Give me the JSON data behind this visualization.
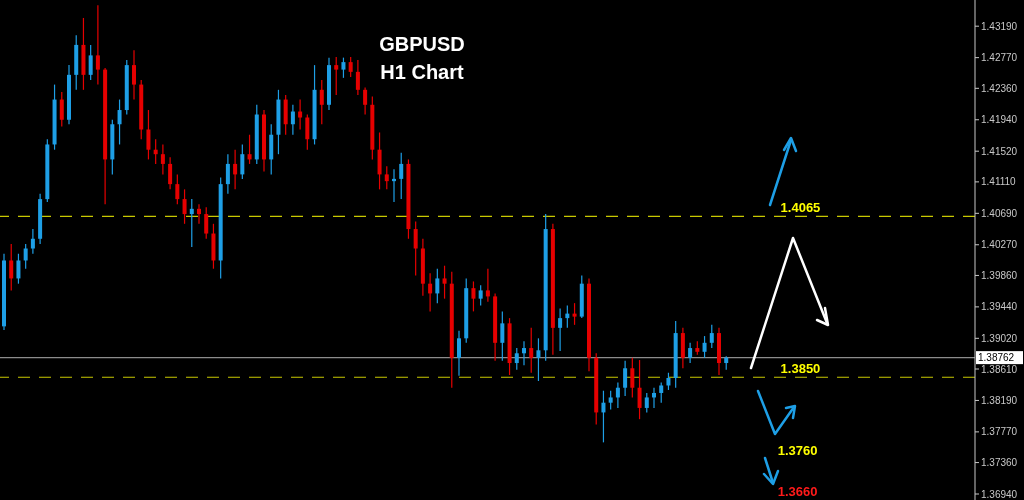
{
  "chart_data": {
    "type": "candlestick",
    "title": "GBPUSD",
    "subtitle": "H1 Chart",
    "categories": [
      null,
      null,
      null,
      null,
      null,
      null,
      null,
      null,
      null,
      null,
      null,
      null,
      null,
      null,
      null,
      null,
      null,
      null,
      null,
      null,
      null,
      null,
      null,
      null,
      null,
      null,
      null,
      null,
      null,
      null,
      null,
      null,
      null,
      null,
      null,
      null,
      null,
      null,
      null,
      null,
      null,
      null,
      null,
      null,
      null,
      null,
      null,
      null,
      null,
      null,
      null,
      null,
      null,
      null,
      null,
      null,
      null,
      null,
      null,
      null,
      null,
      null,
      null,
      null,
      null,
      null,
      null,
      null,
      null,
      null,
      null,
      null,
      null,
      null,
      null,
      null,
      null,
      null,
      null,
      null,
      null,
      null,
      null,
      null,
      null,
      null,
      null,
      null,
      null,
      null,
      null,
      null,
      null,
      null,
      null,
      null,
      null,
      null,
      null,
      null,
      null,
      null,
      null,
      null,
      null,
      null,
      null,
      null,
      null,
      null,
      null,
      null,
      null,
      null,
      null,
      null,
      null,
      null,
      null,
      null,
      null,
      null,
      null,
      null,
      null,
      null,
      null,
      null,
      null,
      null,
      null,
      null,
      null,
      null,
      null
    ],
    "ohlc": [
      [
        1.3918,
        1.4015,
        1.3913,
        1.4006
      ],
      [
        1.4006,
        1.4028,
        1.3966,
        1.3982
      ],
      [
        1.3982,
        1.4015,
        1.3975,
        1.4006
      ],
      [
        1.4006,
        1.4028,
        1.3995,
        1.4022
      ],
      [
        1.4022,
        1.4048,
        1.4015,
        1.4035
      ],
      [
        1.4035,
        1.4095,
        1.4028,
        1.4088
      ],
      [
        1.4088,
        1.4168,
        1.4084,
        1.4161
      ],
      [
        1.4161,
        1.4241,
        1.4154,
        1.4221
      ],
      [
        1.4221,
        1.4231,
        1.4185,
        1.4194
      ],
      [
        1.4194,
        1.4267,
        1.4188,
        1.4254
      ],
      [
        1.4254,
        1.4307,
        1.4234,
        1.4294
      ],
      [
        1.4294,
        1.433,
        1.4234,
        1.4254
      ],
      [
        1.4254,
        1.4294,
        1.4247,
        1.428
      ],
      [
        1.428,
        1.4347,
        1.4241,
        1.4261
      ],
      [
        1.4261,
        1.4263,
        1.4081,
        1.4141
      ],
      [
        1.4141,
        1.4194,
        1.4121,
        1.4188
      ],
      [
        1.4188,
        1.4221,
        1.4161,
        1.4207
      ],
      [
        1.4207,
        1.4274,
        1.4201,
        1.4267
      ],
      [
        1.4267,
        1.4287,
        1.4221,
        1.4241
      ],
      [
        1.4241,
        1.4247,
        1.4168,
        1.4181
      ],
      [
        1.4181,
        1.4207,
        1.4141,
        1.4154
      ],
      [
        1.4154,
        1.4168,
        1.4135,
        1.4148
      ],
      [
        1.4148,
        1.4161,
        1.4121,
        1.4135
      ],
      [
        1.4135,
        1.4144,
        1.4101,
        1.4108
      ],
      [
        1.4108,
        1.4121,
        1.4081,
        1.4088
      ],
      [
        1.4088,
        1.4101,
        1.4055,
        1.4068
      ],
      [
        1.4068,
        1.4088,
        1.4024,
        1.4075
      ],
      [
        1.4075,
        1.4081,
        1.4055,
        1.4068
      ],
      [
        1.4068,
        1.4077,
        1.4035,
        1.4042
      ],
      [
        1.4042,
        1.4055,
        1.3995,
        1.4006
      ],
      [
        1.4006,
        1.4117,
        1.3982,
        1.4108
      ],
      [
        1.4108,
        1.4148,
        1.4095,
        1.4135
      ],
      [
        1.4135,
        1.4154,
        1.4101,
        1.4121
      ],
      [
        1.4121,
        1.4161,
        1.4115,
        1.4148
      ],
      [
        1.4148,
        1.4174,
        1.4135,
        1.4141
      ],
      [
        1.4141,
        1.4214,
        1.4135,
        1.4201
      ],
      [
        1.4201,
        1.4207,
        1.4125,
        1.4141
      ],
      [
        1.4141,
        1.4188,
        1.4121,
        1.4174
      ],
      [
        1.4174,
        1.4234,
        1.4148,
        1.4221
      ],
      [
        1.4221,
        1.4227,
        1.4174,
        1.4188
      ],
      [
        1.4188,
        1.4214,
        1.4174,
        1.4205
      ],
      [
        1.4205,
        1.4221,
        1.4181,
        1.4197
      ],
      [
        1.4197,
        1.4201,
        1.4154,
        1.4168
      ],
      [
        1.4168,
        1.4267,
        1.4161,
        1.4234
      ],
      [
        1.4234,
        1.4247,
        1.4188,
        1.4214
      ],
      [
        1.4214,
        1.4277,
        1.4207,
        1.4267
      ],
      [
        1.4267,
        1.4278,
        1.4227,
        1.4261
      ],
      [
        1.4261,
        1.4277,
        1.425,
        1.4271
      ],
      [
        1.4271,
        1.4278,
        1.4251,
        1.4258
      ],
      [
        1.4258,
        1.4274,
        1.4227,
        1.4234
      ],
      [
        1.4234,
        1.4237,
        1.4201,
        1.4214
      ],
      [
        1.4214,
        1.4225,
        1.4141,
        1.4154
      ],
      [
        1.4154,
        1.4177,
        1.4101,
        1.4121
      ],
      [
        1.4121,
        1.4132,
        1.4101,
        1.4112
      ],
      [
        1.4112,
        1.4128,
        1.4084,
        1.4115
      ],
      [
        1.4115,
        1.415,
        1.4088,
        1.4135
      ],
      [
        1.4135,
        1.4141,
        1.4035,
        1.4048
      ],
      [
        1.4048,
        1.4058,
        1.3986,
        1.4022
      ],
      [
        1.4022,
        1.4035,
        1.3959,
        1.3975
      ],
      [
        1.3975,
        1.3989,
        1.3938,
        1.3962
      ],
      [
        1.3962,
        1.3995,
        1.3949,
        1.3982
      ],
      [
        1.3982,
        1.3999,
        1.3955,
        1.3975
      ],
      [
        1.3975,
        1.3991,
        1.3836,
        1.3876
      ],
      [
        1.3876,
        1.3912,
        1.3852,
        1.3902
      ],
      [
        1.3902,
        1.3982,
        1.3896,
        1.3969
      ],
      [
        1.3969,
        1.3978,
        1.3938,
        1.3955
      ],
      [
        1.3955,
        1.3973,
        1.3946,
        1.3966
      ],
      [
        1.3966,
        1.3995,
        1.3951,
        1.3958
      ],
      [
        1.3958,
        1.3962,
        1.3872,
        1.3896
      ],
      [
        1.3896,
        1.3938,
        1.3872,
        1.3922
      ],
      [
        1.3922,
        1.3929,
        1.3853,
        1.3869
      ],
      [
        1.3869,
        1.3889,
        1.386,
        1.3882
      ],
      [
        1.3882,
        1.3898,
        1.3866,
        1.3889
      ],
      [
        1.3889,
        1.3916,
        1.3856,
        1.3876
      ],
      [
        1.3876,
        1.3902,
        1.3845,
        1.3886
      ],
      [
        1.3886,
        1.4068,
        1.3872,
        1.4048
      ],
      [
        1.4048,
        1.4055,
        1.388,
        1.3916
      ],
      [
        1.3916,
        1.3942,
        1.3885,
        1.3929
      ],
      [
        1.3929,
        1.3946,
        1.3916,
        1.3935
      ],
      [
        1.3935,
        1.3949,
        1.392,
        1.3931
      ],
      [
        1.3931,
        1.3986,
        1.3929,
        1.3975
      ],
      [
        1.3975,
        1.3982,
        1.3858,
        1.3876
      ],
      [
        1.3876,
        1.3882,
        1.3787,
        1.3803
      ],
      [
        1.3803,
        1.3832,
        1.3763,
        1.3816
      ],
      [
        1.3816,
        1.3832,
        1.3807,
        1.3823
      ],
      [
        1.3823,
        1.3843,
        1.3809,
        1.3836
      ],
      [
        1.3836,
        1.3872,
        1.3825,
        1.3862
      ],
      [
        1.3862,
        1.3876,
        1.3823,
        1.3836
      ],
      [
        1.3836,
        1.3873,
        1.3794,
        1.3809
      ],
      [
        1.3809,
        1.3829,
        1.3803,
        1.3823
      ],
      [
        1.3823,
        1.3836,
        1.3809,
        1.3829
      ],
      [
        1.3829,
        1.3843,
        1.3816,
        1.3839
      ],
      [
        1.3839,
        1.3856,
        1.3833,
        1.3849
      ],
      [
        1.3849,
        1.3925,
        1.3836,
        1.3909
      ],
      [
        1.3909,
        1.3916,
        1.3862,
        1.3876
      ],
      [
        1.3876,
        1.3896,
        1.3869,
        1.3889
      ],
      [
        1.3889,
        1.3898,
        1.388,
        1.3884
      ],
      [
        1.3884,
        1.3905,
        1.3876,
        1.3896
      ],
      [
        1.3896,
        1.392,
        1.3889,
        1.3909
      ],
      [
        1.3909,
        1.3916,
        1.3853,
        1.3869
      ],
      [
        1.3869,
        1.3878,
        1.386,
        1.3876
      ],
      null,
      null,
      null,
      null,
      null,
      null,
      null,
      null,
      null,
      null,
      null,
      null,
      null,
      null,
      null,
      null,
      null,
      null,
      null,
      null,
      null,
      null,
      null,
      null,
      null,
      null,
      null,
      null,
      null,
      null,
      null,
      null,
      null,
      null
    ],
    "colors": [
      "#1e9fe6",
      "#e60000",
      "#1e9fe6",
      "#1e9fe6",
      "#1e9fe6",
      "#1e9fe6",
      "#1e9fe6",
      "#1e9fe6",
      "#e60000",
      "#1e9fe6",
      "#1e9fe6",
      "#e60000",
      "#1e9fe6",
      "#e60000",
      "#e60000",
      "#1e9fe6",
      "#1e9fe6",
      "#1e9fe6",
      "#e60000",
      "#e60000",
      "#e60000",
      "#e60000",
      "#e60000",
      "#e60000",
      "#e60000",
      "#e60000",
      "#1e9fe6",
      "#e60000",
      "#e60000",
      "#e60000",
      "#1e9fe6",
      "#1e9fe6",
      "#e60000",
      "#1e9fe6",
      "#e60000",
      "#1e9fe6",
      "#e60000",
      "#1e9fe6",
      "#1e9fe6",
      "#e60000",
      "#1e9fe6",
      "#e60000",
      "#e60000",
      "#1e9fe6",
      "#e60000",
      "#1e9fe6",
      "#e60000",
      "#1e9fe6",
      "#e60000",
      "#e60000",
      "#e60000",
      "#e60000",
      "#e60000",
      "#e60000",
      "#1e9fe6",
      "#1e9fe6",
      "#e60000",
      "#e60000",
      "#e60000",
      "#e60000",
      "#1e9fe6",
      "#e60000",
      "#e60000",
      "#1e9fe6",
      "#1e9fe6",
      "#e60000",
      "#1e9fe6",
      "#e60000",
      "#e60000",
      "#1e9fe6",
      "#e60000",
      "#1e9fe6",
      "#1e9fe6",
      "#e60000",
      "#1e9fe6",
      "#1e9fe6",
      "#e60000",
      "#1e9fe6",
      "#1e9fe6",
      "#e60000",
      "#1e9fe6",
      "#e60000",
      "#e60000",
      "#1e9fe6",
      "#1e9fe6",
      "#1e9fe6",
      "#1e9fe6",
      "#e60000",
      "#e60000",
      "#1e9fe6",
      "#1e9fe6",
      "#1e9fe6",
      "#1e9fe6",
      "#1e9fe6",
      "#e60000",
      "#1e9fe6",
      "#e60000",
      "#1e9fe6",
      "#1e9fe6",
      "#e60000",
      "#1e9fe6",
      null,
      null,
      null,
      null,
      null,
      null,
      null,
      null,
      null,
      null,
      null,
      null,
      null,
      null,
      null,
      null,
      null,
      null,
      null,
      null,
      null,
      null,
      null,
      null,
      null,
      null,
      null,
      null,
      null,
      null,
      null,
      null,
      null,
      null
    ],
    "ylim": [
      1.3686,
      1.4354
    ],
    "yticks": [
      {
        "value": 1.4319,
        "label": "1.43190"
      },
      {
        "value": 1.4277,
        "label": "1.42770"
      },
      {
        "value": 1.4236,
        "label": "1.42360"
      },
      {
        "value": 1.4194,
        "label": "1.41940"
      },
      {
        "value": 1.4152,
        "label": "1.41520"
      },
      {
        "value": 1.4111,
        "label": "1.41110"
      },
      {
        "value": 1.4069,
        "label": "1.40690"
      },
      {
        "value": 1.4027,
        "label": "1.40270"
      },
      {
        "value": 1.3986,
        "label": "1.39860"
      },
      {
        "value": 1.3944,
        "label": "1.39440"
      },
      {
        "value": 1.3902,
        "label": "1.39020"
      },
      {
        "value": 1.3861,
        "label": "1.38610"
      },
      {
        "value": 1.3819,
        "label": "1.38190"
      },
      {
        "value": 1.3777,
        "label": "1.37770"
      },
      {
        "value": 1.3736,
        "label": "1.37360"
      },
      {
        "value": 1.3694,
        "label": "1.36940"
      }
    ],
    "tick_labels": "y",
    "ref_lines": [
      {
        "axis": "y",
        "value": 1.38762,
        "label": "1.38762",
        "color": "#8c8c8c",
        "line_style": "solid"
      },
      {
        "axis": "y",
        "value": 1.4065,
        "label": "1.4065",
        "color": "#c8c800",
        "line_style": "dashed"
      },
      {
        "axis": "y",
        "value": 1.385,
        "label": "1.3850",
        "color": "#c8c800",
        "line_style": "dashed"
      }
    ],
    "annotations": [
      "1.3760",
      "1.3660"
    ]
  }
}
